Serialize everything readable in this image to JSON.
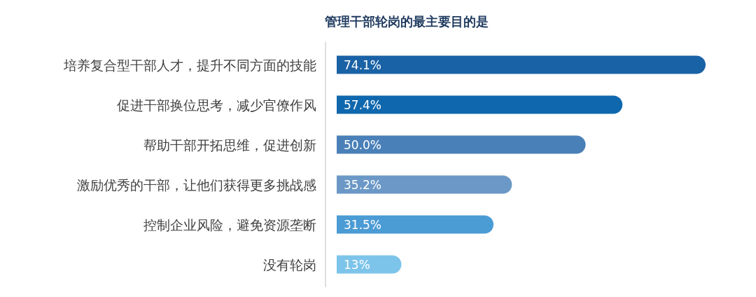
{
  "chart_data": {
    "type": "bar",
    "orientation": "horizontal",
    "title": "管理干部轮岗的最主要目的是",
    "categories": [
      "培养复合型干部人才，提升不同方面的技能",
      "促进干部换位思考，减少官僚作风",
      "帮助干部开拓思维，促进创新",
      "激励优秀的干部，让他们获得更多挑战感",
      "控制企业风险，避免资源垄断",
      "没有轮岗"
    ],
    "values": [
      74.1,
      57.4,
      50.0,
      35.2,
      31.5,
      13
    ],
    "colors": [
      "#1a62a6",
      "#0f68ae",
      "#4a80b8",
      "#6b98c6",
      "#4b9bd5",
      "#7cc4ea"
    ],
    "value_labels": [
      "74.1%",
      "57.4%",
      "50.0%",
      "35.2%",
      "31.5%",
      "13%"
    ]
  }
}
